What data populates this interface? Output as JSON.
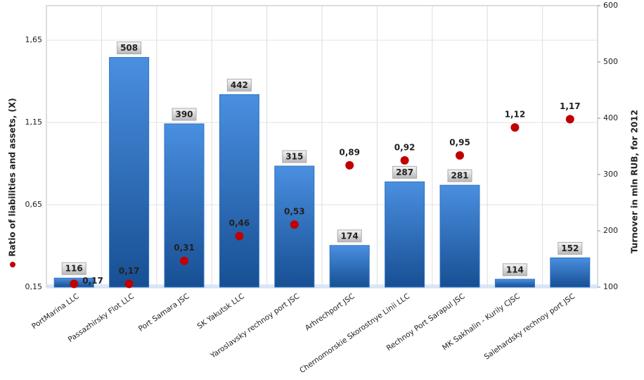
{
  "chart_data": {
    "type": "bar",
    "ylabel": "Ratio of liabilities and assets, (X)",
    "y2label": "Turnover in mln RUB, for 2012",
    "categories": [
      "PortMarina LLC",
      "Passazhirsky Flot LLC",
      "Port Samara JSC",
      "SK Yakutsk LLC",
      "Yaroslavsky rechnoy port JSC",
      "Arhrechport JSC",
      "Chernomorskie Skorostnye Linii LLC",
      "Rechnoy Port Sarapul JSC",
      "MK Sakhalin - Kurily CJSC",
      "Salehardsky rechnoy port JSC"
    ],
    "series": [
      {
        "type": "bar",
        "axis": "y2",
        "color": "#2f73c4",
        "values": [
          116,
          508,
          390,
          442,
          315,
          174,
          287,
          281,
          114,
          152
        ]
      },
      {
        "type": "scatter",
        "color": "#c00000",
        "values": [
          0.17,
          0.17,
          0.31,
          0.46,
          0.53,
          0.89,
          0.92,
          0.95,
          1.12,
          1.17
        ],
        "value_labels": [
          "0,17",
          "0,17",
          "0,31",
          "0,46",
          "0,53",
          "0,89",
          "0,92",
          "0,95",
          "1,12",
          "1,17"
        ]
      }
    ],
    "ylim": [
      0.15,
      1.86
    ],
    "yticks": [
      {
        "value": 0.15,
        "label": "0,15"
      },
      {
        "value": 0.65,
        "label": "0,65"
      },
      {
        "value": 1.15,
        "label": "1,15"
      },
      {
        "value": 1.65,
        "label": "1,65"
      }
    ],
    "y2lim": [
      100,
      600
    ],
    "y2ticks": [
      100,
      200,
      300,
      400,
      500,
      600
    ],
    "grid": true
  }
}
